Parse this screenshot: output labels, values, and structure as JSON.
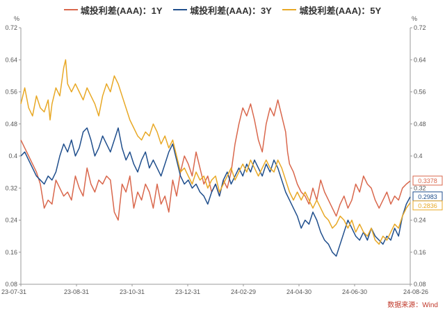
{
  "chart_data": {
    "type": "line",
    "y_unit_left": "%",
    "y_unit_right": "%",
    "ylim": [
      0.08,
      0.72
    ],
    "yticks": [
      "0.08",
      "0.16",
      "0.24",
      "0.32",
      "0.4",
      "0.48",
      "0.56",
      "0.64",
      "0.72"
    ],
    "xticks": [
      "23-07-31",
      "23-08-31",
      "23-10-31",
      "23-12-31",
      "24-02-29",
      "24-04-30",
      "24-06-30",
      "24-08-26"
    ],
    "source": "数据来源：Wind",
    "grid": false,
    "legend_position": "top",
    "series": [
      {
        "name": "城投利差(AAA)：1Y",
        "color": "#d9674c",
        "end_label": "0.3378",
        "points": [
          [
            0,
            0.44
          ],
          [
            0.01,
            0.42
          ],
          [
            0.02,
            0.4
          ],
          [
            0.03,
            0.38
          ],
          [
            0.04,
            0.36
          ],
          [
            0.05,
            0.33
          ],
          [
            0.055,
            0.3
          ],
          [
            0.06,
            0.27
          ],
          [
            0.07,
            0.29
          ],
          [
            0.08,
            0.28
          ],
          [
            0.09,
            0.34
          ],
          [
            0.1,
            0.32
          ],
          [
            0.11,
            0.3
          ],
          [
            0.12,
            0.31
          ],
          [
            0.13,
            0.29
          ],
          [
            0.14,
            0.35
          ],
          [
            0.15,
            0.32
          ],
          [
            0.16,
            0.3
          ],
          [
            0.17,
            0.37
          ],
          [
            0.18,
            0.33
          ],
          [
            0.19,
            0.31
          ],
          [
            0.2,
            0.34
          ],
          [
            0.21,
            0.33
          ],
          [
            0.22,
            0.35
          ],
          [
            0.23,
            0.34
          ],
          [
            0.24,
            0.26
          ],
          [
            0.25,
            0.24
          ],
          [
            0.26,
            0.33
          ],
          [
            0.27,
            0.31
          ],
          [
            0.28,
            0.35
          ],
          [
            0.29,
            0.27
          ],
          [
            0.3,
            0.31
          ],
          [
            0.31,
            0.29
          ],
          [
            0.32,
            0.33
          ],
          [
            0.33,
            0.31
          ],
          [
            0.34,
            0.27
          ],
          [
            0.35,
            0.33
          ],
          [
            0.36,
            0.28
          ],
          [
            0.37,
            0.3
          ],
          [
            0.38,
            0.26
          ],
          [
            0.39,
            0.34
          ],
          [
            0.4,
            0.3
          ],
          [
            0.41,
            0.36
          ],
          [
            0.42,
            0.4
          ],
          [
            0.43,
            0.38
          ],
          [
            0.44,
            0.35
          ],
          [
            0.45,
            0.41
          ],
          [
            0.46,
            0.37
          ],
          [
            0.47,
            0.33
          ],
          [
            0.48,
            0.35
          ],
          [
            0.49,
            0.31
          ],
          [
            0.5,
            0.33
          ],
          [
            0.51,
            0.3
          ],
          [
            0.52,
            0.34
          ],
          [
            0.53,
            0.32
          ],
          [
            0.54,
            0.36
          ],
          [
            0.55,
            0.43
          ],
          [
            0.56,
            0.48
          ],
          [
            0.57,
            0.52
          ],
          [
            0.58,
            0.5
          ],
          [
            0.59,
            0.53
          ],
          [
            0.6,
            0.49
          ],
          [
            0.61,
            0.44
          ],
          [
            0.62,
            0.41
          ],
          [
            0.63,
            0.48
          ],
          [
            0.64,
            0.52
          ],
          [
            0.65,
            0.5
          ],
          [
            0.66,
            0.54
          ],
          [
            0.67,
            0.5
          ],
          [
            0.68,
            0.46
          ],
          [
            0.685,
            0.41
          ],
          [
            0.69,
            0.38
          ],
          [
            0.7,
            0.36
          ],
          [
            0.71,
            0.33
          ],
          [
            0.72,
            0.31
          ],
          [
            0.73,
            0.3
          ],
          [
            0.74,
            0.28
          ],
          [
            0.75,
            0.32
          ],
          [
            0.76,
            0.29
          ],
          [
            0.77,
            0.34
          ],
          [
            0.78,
            0.31
          ],
          [
            0.79,
            0.29
          ],
          [
            0.8,
            0.27
          ],
          [
            0.81,
            0.25
          ],
          [
            0.82,
            0.28
          ],
          [
            0.83,
            0.3
          ],
          [
            0.84,
            0.27
          ],
          [
            0.85,
            0.29
          ],
          [
            0.86,
            0.33
          ],
          [
            0.87,
            0.31
          ],
          [
            0.88,
            0.35
          ],
          [
            0.89,
            0.33
          ],
          [
            0.9,
            0.32
          ],
          [
            0.91,
            0.29
          ],
          [
            0.92,
            0.27
          ],
          [
            0.93,
            0.29
          ],
          [
            0.94,
            0.31
          ],
          [
            0.95,
            0.28
          ],
          [
            0.96,
            0.3
          ],
          [
            0.97,
            0.29
          ],
          [
            0.98,
            0.32
          ],
          [
            0.99,
            0.33
          ],
          [
            1.0,
            0.3378
          ]
        ]
      },
      {
        "name": "城投利差(AAA)：3Y",
        "color": "#1f4e8c",
        "end_label": "0.2983",
        "points": [
          [
            0,
            0.4
          ],
          [
            0.01,
            0.41
          ],
          [
            0.02,
            0.39
          ],
          [
            0.03,
            0.37
          ],
          [
            0.04,
            0.35
          ],
          [
            0.05,
            0.34
          ],
          [
            0.06,
            0.33
          ],
          [
            0.07,
            0.35
          ],
          [
            0.08,
            0.34
          ],
          [
            0.09,
            0.36
          ],
          [
            0.1,
            0.4
          ],
          [
            0.11,
            0.43
          ],
          [
            0.12,
            0.41
          ],
          [
            0.13,
            0.44
          ],
          [
            0.14,
            0.4
          ],
          [
            0.15,
            0.42
          ],
          [
            0.16,
            0.46
          ],
          [
            0.17,
            0.47
          ],
          [
            0.18,
            0.44
          ],
          [
            0.19,
            0.4
          ],
          [
            0.2,
            0.42
          ],
          [
            0.21,
            0.45
          ],
          [
            0.22,
            0.43
          ],
          [
            0.23,
            0.41
          ],
          [
            0.24,
            0.44
          ],
          [
            0.25,
            0.47
          ],
          [
            0.26,
            0.42
          ],
          [
            0.27,
            0.39
          ],
          [
            0.28,
            0.41
          ],
          [
            0.29,
            0.38
          ],
          [
            0.3,
            0.36
          ],
          [
            0.31,
            0.39
          ],
          [
            0.32,
            0.41
          ],
          [
            0.33,
            0.37
          ],
          [
            0.34,
            0.39
          ],
          [
            0.35,
            0.37
          ],
          [
            0.36,
            0.35
          ],
          [
            0.37,
            0.38
          ],
          [
            0.38,
            0.41
          ],
          [
            0.39,
            0.43
          ],
          [
            0.4,
            0.39
          ],
          [
            0.41,
            0.35
          ],
          [
            0.42,
            0.33
          ],
          [
            0.43,
            0.34
          ],
          [
            0.44,
            0.32
          ],
          [
            0.45,
            0.33
          ],
          [
            0.46,
            0.31
          ],
          [
            0.47,
            0.3
          ],
          [
            0.48,
            0.28
          ],
          [
            0.49,
            0.31
          ],
          [
            0.5,
            0.33
          ],
          [
            0.51,
            0.3
          ],
          [
            0.52,
            0.34
          ],
          [
            0.53,
            0.36
          ],
          [
            0.54,
            0.33
          ],
          [
            0.55,
            0.35
          ],
          [
            0.56,
            0.37
          ],
          [
            0.57,
            0.35
          ],
          [
            0.58,
            0.38
          ],
          [
            0.59,
            0.36
          ],
          [
            0.6,
            0.39
          ],
          [
            0.61,
            0.37
          ],
          [
            0.62,
            0.35
          ],
          [
            0.63,
            0.38
          ],
          [
            0.64,
            0.36
          ],
          [
            0.65,
            0.39
          ],
          [
            0.66,
            0.37
          ],
          [
            0.67,
            0.34
          ],
          [
            0.68,
            0.31
          ],
          [
            0.69,
            0.29
          ],
          [
            0.7,
            0.27
          ],
          [
            0.71,
            0.25
          ],
          [
            0.72,
            0.22
          ],
          [
            0.73,
            0.24
          ],
          [
            0.74,
            0.23
          ],
          [
            0.75,
            0.26
          ],
          [
            0.76,
            0.24
          ],
          [
            0.77,
            0.21
          ],
          [
            0.78,
            0.19
          ],
          [
            0.79,
            0.18
          ],
          [
            0.8,
            0.16
          ],
          [
            0.81,
            0.15
          ],
          [
            0.82,
            0.18
          ],
          [
            0.83,
            0.21
          ],
          [
            0.84,
            0.24
          ],
          [
            0.85,
            0.22
          ],
          [
            0.86,
            0.2
          ],
          [
            0.87,
            0.19
          ],
          [
            0.88,
            0.21
          ],
          [
            0.89,
            0.19
          ],
          [
            0.9,
            0.22
          ],
          [
            0.91,
            0.2
          ],
          [
            0.92,
            0.19
          ],
          [
            0.93,
            0.18
          ],
          [
            0.94,
            0.2
          ],
          [
            0.95,
            0.19
          ],
          [
            0.96,
            0.22
          ],
          [
            0.97,
            0.2
          ],
          [
            0.98,
            0.25
          ],
          [
            0.99,
            0.28
          ],
          [
            1.0,
            0.2983
          ]
        ]
      },
      {
        "name": "城投利差(AAA)：5Y",
        "color": "#e8a825",
        "end_label": "0.2836",
        "points": [
          [
            0,
            0.53
          ],
          [
            0.01,
            0.57
          ],
          [
            0.02,
            0.52
          ],
          [
            0.03,
            0.5
          ],
          [
            0.04,
            0.55
          ],
          [
            0.05,
            0.52
          ],
          [
            0.06,
            0.51
          ],
          [
            0.07,
            0.54
          ],
          [
            0.075,
            0.49
          ],
          [
            0.08,
            0.53
          ],
          [
            0.09,
            0.57
          ],
          [
            0.1,
            0.55
          ],
          [
            0.11,
            0.62
          ],
          [
            0.115,
            0.64
          ],
          [
            0.12,
            0.58
          ],
          [
            0.13,
            0.56
          ],
          [
            0.14,
            0.58
          ],
          [
            0.15,
            0.56
          ],
          [
            0.16,
            0.54
          ],
          [
            0.17,
            0.57
          ],
          [
            0.18,
            0.55
          ],
          [
            0.19,
            0.53
          ],
          [
            0.2,
            0.5
          ],
          [
            0.21,
            0.55
          ],
          [
            0.22,
            0.58
          ],
          [
            0.23,
            0.56
          ],
          [
            0.24,
            0.6
          ],
          [
            0.25,
            0.58
          ],
          [
            0.26,
            0.55
          ],
          [
            0.27,
            0.52
          ],
          [
            0.28,
            0.49
          ],
          [
            0.29,
            0.47
          ],
          [
            0.3,
            0.45
          ],
          [
            0.31,
            0.44
          ],
          [
            0.32,
            0.46
          ],
          [
            0.33,
            0.45
          ],
          [
            0.34,
            0.48
          ],
          [
            0.35,
            0.46
          ],
          [
            0.36,
            0.43
          ],
          [
            0.37,
            0.45
          ],
          [
            0.38,
            0.42
          ],
          [
            0.39,
            0.44
          ],
          [
            0.4,
            0.4
          ],
          [
            0.41,
            0.36
          ],
          [
            0.42,
            0.37
          ],
          [
            0.43,
            0.35
          ],
          [
            0.44,
            0.33
          ],
          [
            0.45,
            0.36
          ],
          [
            0.46,
            0.34
          ],
          [
            0.47,
            0.35
          ],
          [
            0.48,
            0.32
          ],
          [
            0.49,
            0.34
          ],
          [
            0.5,
            0.35
          ],
          [
            0.51,
            0.31
          ],
          [
            0.52,
            0.33
          ],
          [
            0.53,
            0.35
          ],
          [
            0.54,
            0.37
          ],
          [
            0.55,
            0.34
          ],
          [
            0.56,
            0.36
          ],
          [
            0.57,
            0.38
          ],
          [
            0.58,
            0.36
          ],
          [
            0.59,
            0.39
          ],
          [
            0.6,
            0.37
          ],
          [
            0.61,
            0.35
          ],
          [
            0.62,
            0.37
          ],
          [
            0.63,
            0.39
          ],
          [
            0.64,
            0.37
          ],
          [
            0.65,
            0.36
          ],
          [
            0.66,
            0.39
          ],
          [
            0.67,
            0.37
          ],
          [
            0.68,
            0.34
          ],
          [
            0.69,
            0.31
          ],
          [
            0.7,
            0.29
          ],
          [
            0.71,
            0.31
          ],
          [
            0.72,
            0.29
          ],
          [
            0.73,
            0.31
          ],
          [
            0.74,
            0.29
          ],
          [
            0.75,
            0.27
          ],
          [
            0.76,
            0.29
          ],
          [
            0.77,
            0.27
          ],
          [
            0.78,
            0.25
          ],
          [
            0.79,
            0.24
          ],
          [
            0.8,
            0.22
          ],
          [
            0.81,
            0.23
          ],
          [
            0.82,
            0.25
          ],
          [
            0.83,
            0.24
          ],
          [
            0.84,
            0.22
          ],
          [
            0.85,
            0.24
          ],
          [
            0.86,
            0.21
          ],
          [
            0.87,
            0.23
          ],
          [
            0.88,
            0.21
          ],
          [
            0.89,
            0.2
          ],
          [
            0.9,
            0.22
          ],
          [
            0.91,
            0.19
          ],
          [
            0.92,
            0.18
          ],
          [
            0.93,
            0.2
          ],
          [
            0.94,
            0.19
          ],
          [
            0.95,
            0.21
          ],
          [
            0.96,
            0.23
          ],
          [
            0.97,
            0.22
          ],
          [
            0.98,
            0.25
          ],
          [
            0.99,
            0.27
          ],
          [
            1.0,
            0.2836
          ]
        ]
      }
    ]
  }
}
